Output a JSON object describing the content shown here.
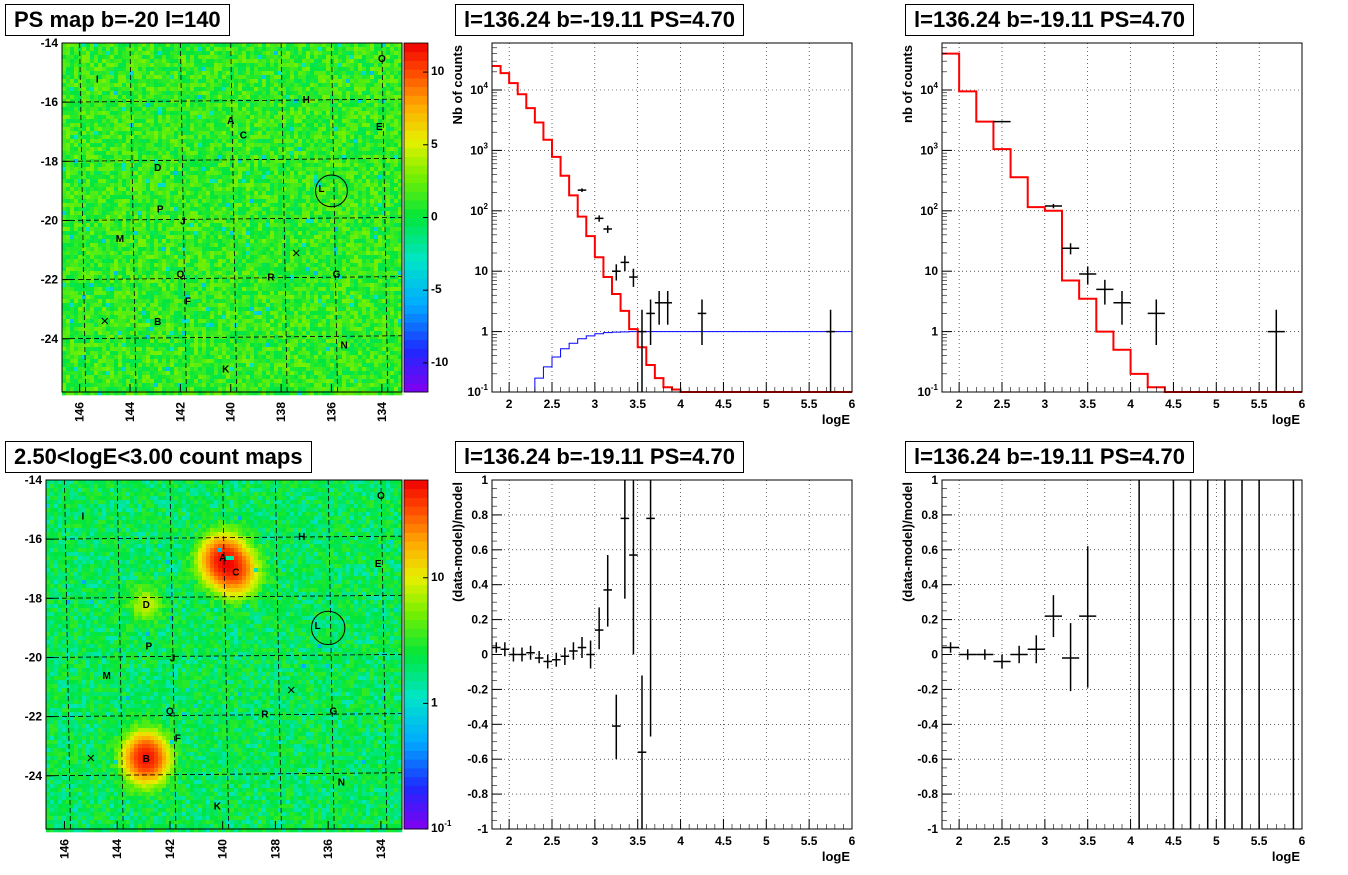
{
  "chart_data": [
    {
      "panel": "top-left",
      "type": "heatmap",
      "title": "PS map b=-20 l=140",
      "x_ticks": [
        "146",
        "144",
        "142",
        "140",
        "138",
        "136",
        "134"
      ],
      "y_ticks": [
        "-14",
        "-16",
        "-18",
        "-20",
        "-22",
        "-24"
      ],
      "xlim": [
        146.7,
        133.2
      ],
      "ylim": [
        -25.8,
        -14
      ],
      "colorbar": {
        "scale": "linear",
        "range": [
          -12,
          12
        ],
        "ticks": [
          "10",
          "5",
          "0",
          "-5",
          "-10"
        ],
        "tick_values": [
          10,
          5,
          0,
          -5,
          -10
        ]
      },
      "sources": [
        {
          "label": "O",
          "l": 134.0,
          "b": -14.5
        },
        {
          "label": "I",
          "l": 145.3,
          "b": -15.2
        },
        {
          "label": "H",
          "l": 137.0,
          "b": -15.9
        },
        {
          "label": "A",
          "l": 140.0,
          "b": -16.6
        },
        {
          "label": "E",
          "l": 134.1,
          "b": -16.8
        },
        {
          "label": "C",
          "l": 139.5,
          "b": -17.1
        },
        {
          "label": "D",
          "l": 142.9,
          "b": -18.2
        },
        {
          "label": "L",
          "l": 136.4,
          "b": -18.9
        },
        {
          "label": "P",
          "l": 142.8,
          "b": -19.6
        },
        {
          "label": "J",
          "l": 141.9,
          "b": -20.0
        },
        {
          "label": "M",
          "l": 144.4,
          "b": -20.6
        },
        {
          "label": "Q",
          "l": 142.0,
          "b": -21.8
        },
        {
          "label": "R",
          "l": 138.4,
          "b": -21.9
        },
        {
          "label": "G",
          "l": 135.8,
          "b": -21.8
        },
        {
          "label": "F",
          "l": 141.7,
          "b": -22.7
        },
        {
          "label": "B",
          "l": 142.9,
          "b": -23.4
        },
        {
          "label": "N",
          "l": 135.5,
          "b": -24.2
        },
        {
          "label": "K",
          "l": 140.2,
          "b": -25.0
        }
      ],
      "crosses": [
        {
          "l": 145.0,
          "b": -23.4
        },
        {
          "l": 137.4,
          "b": -21.1
        }
      ],
      "circle": {
        "l": 136.0,
        "b": -19.0,
        "radius_deg": 0.55
      }
    },
    {
      "panel": "top-middle",
      "type": "line",
      "title": "l=136.24 b=-19.11 PS=4.70",
      "xlabel": "logE",
      "ylabel": "Nb of counts",
      "xlim": [
        1.8,
        6.0
      ],
      "ylim": [
        0.1,
        60000
      ],
      "yscale": "log",
      "x_ticks": [
        "2",
        "2.5",
        "3",
        "3.5",
        "4",
        "4.5",
        "5",
        "5.5",
        "6"
      ],
      "y_ticks": [
        "10^-1",
        "1",
        "10",
        "10^2",
        "10^3",
        "10^4"
      ],
      "grid": true,
      "model_hist": {
        "color": "#ff0000",
        "edges": [
          1.8,
          1.9,
          2.0,
          2.1,
          2.2,
          2.3,
          2.4,
          2.5,
          2.6,
          2.7,
          2.8,
          2.9,
          3.0,
          3.1,
          3.2,
          3.3,
          3.4,
          3.5,
          3.6,
          3.7,
          3.8,
          3.9,
          4.0,
          4.1,
          6.0
        ],
        "values": [
          25000,
          19000,
          13000,
          8500,
          5000,
          2900,
          1500,
          780,
          380,
          180,
          80,
          38,
          17,
          8,
          4.2,
          2.2,
          1.1,
          0.55,
          0.28,
          0.17,
          0.12,
          0.11,
          0.1,
          0.1
        ]
      },
      "source_hist": {
        "color": "#0000ff",
        "edges": [
          1.8,
          2.3,
          2.4,
          2.5,
          2.6,
          2.7,
          2.8,
          2.9,
          3.0,
          3.1,
          3.2,
          3.3,
          3.4,
          3.6,
          6.0
        ],
        "values": [
          0.1,
          0.17,
          0.26,
          0.38,
          0.52,
          0.64,
          0.76,
          0.85,
          0.92,
          0.96,
          0.98,
          0.99,
          1.0,
          1.0
        ]
      },
      "data_points": [
        {
          "x": 2.85,
          "y": 220,
          "xerr": 0.05,
          "ylo": 205,
          "yhi": 235
        },
        {
          "x": 3.05,
          "y": 75,
          "xerr": 0.05,
          "ylo": 66,
          "yhi": 84
        },
        {
          "x": 3.15,
          "y": 50,
          "xerr": 0.05,
          "ylo": 43,
          "yhi": 57
        },
        {
          "x": 3.25,
          "y": 10,
          "xerr": 0.05,
          "ylo": 7,
          "yhi": 13
        },
        {
          "x": 3.35,
          "y": 14,
          "xerr": 0.05,
          "ylo": 10,
          "yhi": 18
        },
        {
          "x": 3.45,
          "y": 8,
          "xerr": 0.05,
          "ylo": 5.5,
          "yhi": 11
        },
        {
          "x": 3.55,
          "y": 1,
          "xerr": 0.05,
          "ylo": 0.1,
          "yhi": 2.3
        },
        {
          "x": 3.65,
          "y": 2,
          "xerr": 0.05,
          "ylo": 0.6,
          "yhi": 3.4
        },
        {
          "x": 3.75,
          "y": 3,
          "xerr": 0.05,
          "ylo": 1.3,
          "yhi": 4.7
        },
        {
          "x": 3.85,
          "y": 3,
          "xerr": 0.05,
          "ylo": 1.3,
          "yhi": 4.7
        },
        {
          "x": 4.25,
          "y": 2,
          "xerr": 0.05,
          "ylo": 0.6,
          "yhi": 3.4
        },
        {
          "x": 5.75,
          "y": 1,
          "xerr": 0.05,
          "ylo": 0.1,
          "yhi": 2.3
        }
      ]
    },
    {
      "panel": "top-right",
      "type": "line",
      "title": "l=136.24 b=-19.11 PS=4.70",
      "xlabel": "logE",
      "ylabel": "nb of counts",
      "xlim": [
        1.8,
        6.0
      ],
      "ylim": [
        0.1,
        60000
      ],
      "yscale": "log",
      "x_ticks": [
        "2",
        "2.5",
        "3",
        "3.5",
        "4",
        "4.5",
        "5",
        "5.5",
        "6"
      ],
      "y_ticks": [
        "10^-1",
        "1",
        "10",
        "10^2",
        "10^3",
        "10^4"
      ],
      "grid": true,
      "model_hist": {
        "color": "#ff0000",
        "edges": [
          1.8,
          2.0,
          2.2,
          2.4,
          2.6,
          2.8,
          3.0,
          3.2,
          3.4,
          3.6,
          3.8,
          4.0,
          4.2,
          4.4,
          6.0
        ],
        "values": [
          40000,
          9500,
          3000,
          1050,
          360,
          115,
          100,
          7,
          3.5,
          1.0,
          0.5,
          0.2,
          0.12,
          0.1
        ]
      },
      "data_points": [
        {
          "x": 2.5,
          "y": 3000,
          "xerr": 0.1,
          "ylo": 2900,
          "yhi": 3100
        },
        {
          "x": 3.1,
          "y": 120,
          "xerr": 0.1,
          "ylo": 110,
          "yhi": 130
        },
        {
          "x": 3.3,
          "y": 24,
          "xerr": 0.1,
          "ylo": 19,
          "yhi": 29
        },
        {
          "x": 3.5,
          "y": 9,
          "xerr": 0.1,
          "ylo": 6,
          "yhi": 12
        },
        {
          "x": 3.7,
          "y": 5,
          "xerr": 0.1,
          "ylo": 2.8,
          "yhi": 7.2
        },
        {
          "x": 3.9,
          "y": 3,
          "xerr": 0.1,
          "ylo": 1.3,
          "yhi": 4.7
        },
        {
          "x": 4.3,
          "y": 2,
          "xerr": 0.1,
          "ylo": 0.6,
          "yhi": 3.4
        },
        {
          "x": 5.7,
          "y": 1,
          "xerr": 0.1,
          "ylo": 0.1,
          "yhi": 2.3
        }
      ]
    },
    {
      "panel": "bottom-left",
      "type": "heatmap",
      "title": "2.50<logE<3.00 count maps",
      "x_ticks": [
        "146",
        "144",
        "142",
        "140",
        "138",
        "136",
        "134"
      ],
      "y_ticks": [
        "-14",
        "-16",
        "-18",
        "-20",
        "-22",
        "-24"
      ],
      "xlim": [
        146.7,
        133.2
      ],
      "ylim": [
        -25.8,
        -14
      ],
      "colorbar": {
        "scale": "log",
        "range": [
          0.1,
          60
        ],
        "ticks": [
          "10",
          "1",
          "10^-1"
        ],
        "tick_values": [
          10,
          1,
          0.1
        ]
      },
      "hotspots": [
        {
          "l": 140.0,
          "b": -16.7,
          "sigma_deg": 0.45,
          "peak": 45
        },
        {
          "l": 139.5,
          "b": -17.1,
          "sigma_deg": 0.45,
          "peak": 28
        },
        {
          "l": 142.9,
          "b": -23.4,
          "sigma_deg": 0.45,
          "peak": 50
        },
        {
          "l": 142.9,
          "b": -18.2,
          "sigma_deg": 0.35,
          "peak": 6
        }
      ],
      "sources": [
        {
          "label": "O",
          "l": 134.0,
          "b": -14.5
        },
        {
          "label": "I",
          "l": 145.3,
          "b": -15.2
        },
        {
          "label": "H",
          "l": 137.0,
          "b": -15.9
        },
        {
          "label": "A",
          "l": 140.0,
          "b": -16.6
        },
        {
          "label": "E",
          "l": 134.1,
          "b": -16.8
        },
        {
          "label": "C",
          "l": 139.5,
          "b": -17.1
        },
        {
          "label": "D",
          "l": 142.9,
          "b": -18.2
        },
        {
          "label": "L",
          "l": 136.4,
          "b": -18.9
        },
        {
          "label": "P",
          "l": 142.8,
          "b": -19.6
        },
        {
          "label": "J",
          "l": 141.9,
          "b": -20.0
        },
        {
          "label": "M",
          "l": 144.4,
          "b": -20.6
        },
        {
          "label": "Q",
          "l": 142.0,
          "b": -21.8
        },
        {
          "label": "R",
          "l": 138.4,
          "b": -21.9
        },
        {
          "label": "G",
          "l": 135.8,
          "b": -21.8
        },
        {
          "label": "F",
          "l": 141.7,
          "b": -22.7
        },
        {
          "label": "B",
          "l": 142.9,
          "b": -23.4
        },
        {
          "label": "N",
          "l": 135.5,
          "b": -24.2
        },
        {
          "label": "K",
          "l": 140.2,
          "b": -25.0
        }
      ],
      "crosses": [
        {
          "l": 145.0,
          "b": -23.4
        },
        {
          "l": 137.4,
          "b": -21.1
        }
      ],
      "circle": {
        "l": 136.0,
        "b": -19.0,
        "radius_deg": 0.55
      }
    },
    {
      "panel": "bottom-middle",
      "type": "scatter",
      "title": "l=136.24 b=-19.11 PS=4.70",
      "xlabel": "logE",
      "ylabel": "(data-model)/model",
      "xlim": [
        1.8,
        6.0
      ],
      "ylim": [
        -1,
        1
      ],
      "x_ticks": [
        "2",
        "2.5",
        "3",
        "3.5",
        "4",
        "4.5",
        "5",
        "5.5",
        "6"
      ],
      "y_ticks": [
        "-1",
        "-0.8",
        "-0.6",
        "-0.4",
        "-0.2",
        "0",
        "0.2",
        "0.4",
        "0.6",
        "0.8",
        "1"
      ],
      "grid": true,
      "data_points": [
        {
          "x": 1.85,
          "y": 0.04,
          "xerr": 0.05,
          "ylo": 0.01,
          "yhi": 0.07
        },
        {
          "x": 1.95,
          "y": 0.03,
          "xerr": 0.05,
          "ylo": -0.01,
          "yhi": 0.07
        },
        {
          "x": 2.05,
          "y": 0.0,
          "xerr": 0.05,
          "ylo": -0.04,
          "yhi": 0.04
        },
        {
          "x": 2.15,
          "y": 0.0,
          "xerr": 0.05,
          "ylo": -0.04,
          "yhi": 0.04
        },
        {
          "x": 2.25,
          "y": 0.01,
          "xerr": 0.05,
          "ylo": -0.03,
          "yhi": 0.05
        },
        {
          "x": 2.35,
          "y": -0.02,
          "xerr": 0.05,
          "ylo": -0.05,
          "yhi": 0.02
        },
        {
          "x": 2.45,
          "y": -0.04,
          "xerr": 0.05,
          "ylo": -0.08,
          "yhi": 0.0
        },
        {
          "x": 2.55,
          "y": -0.03,
          "xerr": 0.05,
          "ylo": -0.07,
          "yhi": 0.01
        },
        {
          "x": 2.65,
          "y": -0.01,
          "xerr": 0.05,
          "ylo": -0.06,
          "yhi": 0.04
        },
        {
          "x": 2.75,
          "y": 0.02,
          "xerr": 0.05,
          "ylo": -0.03,
          "yhi": 0.07
        },
        {
          "x": 2.85,
          "y": 0.04,
          "xerr": 0.05,
          "ylo": -0.02,
          "yhi": 0.1
        },
        {
          "x": 2.95,
          "y": 0.0,
          "xerr": 0.05,
          "ylo": -0.08,
          "yhi": 0.08
        },
        {
          "x": 3.05,
          "y": 0.14,
          "xerr": 0.05,
          "ylo": 0.03,
          "yhi": 0.27
        },
        {
          "x": 3.15,
          "y": 0.37,
          "xerr": 0.05,
          "ylo": 0.16,
          "yhi": 0.57
        },
        {
          "x": 3.25,
          "y": -0.41,
          "xerr": 0.05,
          "ylo": -0.6,
          "yhi": -0.23
        },
        {
          "x": 3.35,
          "y": 0.78,
          "xerr": 0.05,
          "ylo": 0.32,
          "yhi": 1.0
        },
        {
          "x": 3.45,
          "y": 0.57,
          "xerr": 0.05,
          "ylo": 0.0,
          "yhi": 1.0
        },
        {
          "x": 3.55,
          "y": -0.56,
          "xerr": 0.05,
          "ylo": -1.0,
          "yhi": -0.12
        },
        {
          "x": 3.65,
          "y": 0.78,
          "xerr": 0.05,
          "ylo": -0.47,
          "yhi": 1.0
        }
      ]
    },
    {
      "panel": "bottom-right",
      "type": "scatter",
      "title": "l=136.24 b=-19.11 PS=4.70",
      "xlabel": "logE",
      "ylabel": "(data-model)/model",
      "xlim": [
        1.8,
        6.0
      ],
      "ylim": [
        -1,
        1
      ],
      "x_ticks": [
        "2",
        "2.5",
        "3",
        "3.5",
        "4",
        "4.5",
        "5",
        "5.5",
        "6"
      ],
      "y_ticks": [
        "-1",
        "-0.8",
        "-0.6",
        "-0.4",
        "-0.2",
        "0",
        "0.2",
        "0.4",
        "0.6",
        "0.8",
        "1"
      ],
      "grid": true,
      "data_points": [
        {
          "x": 1.9,
          "y": 0.04,
          "xerr": 0.1,
          "ylo": 0.01,
          "yhi": 0.07
        },
        {
          "x": 2.1,
          "y": 0.0,
          "xerr": 0.1,
          "ylo": -0.03,
          "yhi": 0.03
        },
        {
          "x": 2.3,
          "y": 0.0,
          "xerr": 0.1,
          "ylo": -0.03,
          "yhi": 0.03
        },
        {
          "x": 2.5,
          "y": -0.04,
          "xerr": 0.1,
          "ylo": -0.08,
          "yhi": 0.0
        },
        {
          "x": 2.7,
          "y": 0.0,
          "xerr": 0.1,
          "ylo": -0.05,
          "yhi": 0.05
        },
        {
          "x": 2.9,
          "y": 0.03,
          "xerr": 0.1,
          "ylo": -0.05,
          "yhi": 0.11
        },
        {
          "x": 3.1,
          "y": 0.22,
          "xerr": 0.1,
          "ylo": 0.1,
          "yhi": 0.34
        },
        {
          "x": 3.3,
          "y": -0.02,
          "xerr": 0.1,
          "ylo": -0.21,
          "yhi": 0.18
        },
        {
          "x": 3.5,
          "y": 0.22,
          "xerr": 0.1,
          "ylo": -0.19,
          "yhi": 0.62
        },
        {
          "x": 4.1,
          "y": 1,
          "xerr": 0.0,
          "ylo": -1.0,
          "yhi": 1.0
        },
        {
          "x": 4.5,
          "y": 1,
          "xerr": 0.0,
          "ylo": -1.0,
          "yhi": 1.0
        },
        {
          "x": 4.7,
          "y": 1,
          "xerr": 0.0,
          "ylo": -1.0,
          "yhi": 1.0
        },
        {
          "x": 4.9,
          "y": 1,
          "xerr": 0.0,
          "ylo": -1.0,
          "yhi": 1.0
        },
        {
          "x": 5.1,
          "y": 1,
          "xerr": 0.0,
          "ylo": -1.0,
          "yhi": 1.0
        },
        {
          "x": 5.3,
          "y": 1,
          "xerr": 0.0,
          "ylo": -1.0,
          "yhi": 1.0
        },
        {
          "x": 5.5,
          "y": 1,
          "xerr": 0.0,
          "ylo": -1.0,
          "yhi": 1.0
        },
        {
          "x": 5.9,
          "y": 1,
          "xerr": 0.0,
          "ylo": -1.0,
          "yhi": 1.0
        }
      ]
    }
  ]
}
